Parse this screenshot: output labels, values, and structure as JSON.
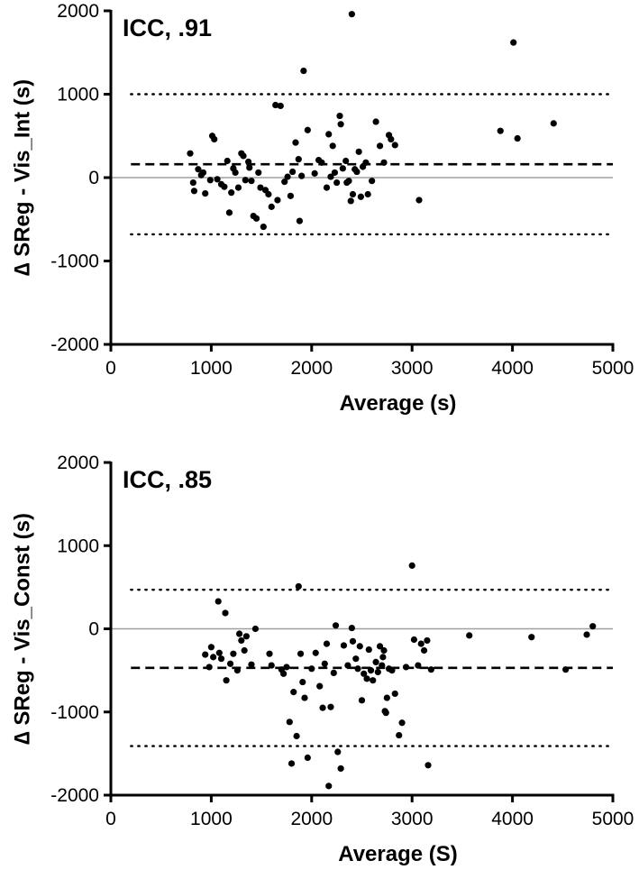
{
  "chart_data": [
    {
      "type": "scatter",
      "annotation": "ICC, .91",
      "xlabel": "Average (s)",
      "ylabel": "∆ SReg - Vis_Int (s)",
      "xlim": [
        0,
        5000
      ],
      "ylim": [
        -2000,
        2000
      ],
      "xticks": [
        "0",
        "1000",
        "2000",
        "3000",
        "4000",
        "5000"
      ],
      "yticks": [
        "-2000",
        "-1000",
        "0",
        "1000",
        "2000"
      ],
      "mean_line": 160,
      "upper_loa": 1000,
      "lower_loa": -680,
      "zero_line": 0,
      "points": [
        [
          790,
          290
        ],
        [
          820,
          -60
        ],
        [
          830,
          -160
        ],
        [
          870,
          100
        ],
        [
          900,
          30
        ],
        [
          920,
          60
        ],
        [
          940,
          -190
        ],
        [
          990,
          -30
        ],
        [
          1010,
          500
        ],
        [
          1030,
          460
        ],
        [
          1060,
          -20
        ],
        [
          1100,
          -80
        ],
        [
          1130,
          -110
        ],
        [
          1160,
          200
        ],
        [
          1180,
          -420
        ],
        [
          1200,
          -180
        ],
        [
          1220,
          110
        ],
        [
          1240,
          60
        ],
        [
          1270,
          -120
        ],
        [
          1300,
          290
        ],
        [
          1320,
          260
        ],
        [
          1340,
          -30
        ],
        [
          1370,
          190
        ],
        [
          1380,
          120
        ],
        [
          1400,
          -40
        ],
        [
          1420,
          -460
        ],
        [
          1450,
          -490
        ],
        [
          1470,
          60
        ],
        [
          1490,
          -120
        ],
        [
          1520,
          -590
        ],
        [
          1540,
          -150
        ],
        [
          1570,
          -200
        ],
        [
          1600,
          -350
        ],
        [
          1640,
          870
        ],
        [
          1660,
          -270
        ],
        [
          1690,
          860
        ],
        [
          1730,
          -50
        ],
        [
          1760,
          10
        ],
        [
          1790,
          -220
        ],
        [
          1810,
          70
        ],
        [
          1840,
          420
        ],
        [
          1870,
          220
        ],
        [
          1880,
          -520
        ],
        [
          1900,
          20
        ],
        [
          1920,
          1280
        ],
        [
          1960,
          570
        ],
        [
          2030,
          50
        ],
        [
          2070,
          210
        ],
        [
          2100,
          180
        ],
        [
          2150,
          -120
        ],
        [
          2170,
          520
        ],
        [
          2190,
          10
        ],
        [
          2210,
          380
        ],
        [
          2230,
          60
        ],
        [
          2250,
          -60
        ],
        [
          2280,
          740
        ],
        [
          2290,
          640
        ],
        [
          2310,
          110
        ],
        [
          2340,
          200
        ],
        [
          2350,
          -60
        ],
        [
          2370,
          -40
        ],
        [
          2390,
          -280
        ],
        [
          2400,
          1960
        ],
        [
          2410,
          -200
        ],
        [
          2430,
          100
        ],
        [
          2450,
          70
        ],
        [
          2470,
          310
        ],
        [
          2490,
          -230
        ],
        [
          2510,
          130
        ],
        [
          2540,
          180
        ],
        [
          2560,
          -200
        ],
        [
          2600,
          -40
        ],
        [
          2640,
          670
        ],
        [
          2680,
          380
        ],
        [
          2720,
          180
        ],
        [
          2770,
          510
        ],
        [
          2790,
          460
        ],
        [
          2830,
          390
        ],
        [
          3070,
          -270
        ],
        [
          3880,
          560
        ],
        [
          4010,
          1620
        ],
        [
          4050,
          470
        ],
        [
          4410,
          650
        ]
      ]
    },
    {
      "type": "scatter",
      "annotation": "ICC, .85",
      "xlabel": "Average (S)",
      "ylabel": "∆ SReg - Vis_Const (s)",
      "xlim": [
        0,
        5000
      ],
      "ylim": [
        -2000,
        2000
      ],
      "xticks": [
        "0",
        "1000",
        "2000",
        "3000",
        "4000",
        "5000"
      ],
      "yticks": [
        "-2000",
        "-1000",
        "0",
        "1000",
        "2000"
      ],
      "mean_line": -470,
      "upper_loa": 470,
      "lower_loa": -1410,
      "zero_line": 0,
      "points": [
        [
          940,
          -310
        ],
        [
          980,
          -460
        ],
        [
          1000,
          -220
        ],
        [
          1020,
          -340
        ],
        [
          1070,
          330
        ],
        [
          1080,
          -290
        ],
        [
          1100,
          -360
        ],
        [
          1140,
          190
        ],
        [
          1150,
          -620
        ],
        [
          1190,
          -420
        ],
        [
          1220,
          -300
        ],
        [
          1260,
          -500
        ],
        [
          1280,
          -60
        ],
        [
          1300,
          -140
        ],
        [
          1330,
          -260
        ],
        [
          1350,
          -90
        ],
        [
          1400,
          -430
        ],
        [
          1440,
          0
        ],
        [
          1580,
          -300
        ],
        [
          1600,
          -440
        ],
        [
          1700,
          -490
        ],
        [
          1720,
          -540
        ],
        [
          1750,
          -460
        ],
        [
          1780,
          -1120
        ],
        [
          1800,
          -1620
        ],
        [
          1820,
          -760
        ],
        [
          1850,
          -1290
        ],
        [
          1870,
          510
        ],
        [
          1890,
          -300
        ],
        [
          1910,
          -640
        ],
        [
          1930,
          -830
        ],
        [
          1960,
          -1550
        ],
        [
          2000,
          -480
        ],
        [
          2040,
          -290
        ],
        [
          2080,
          -690
        ],
        [
          2110,
          -950
        ],
        [
          2130,
          -420
        ],
        [
          2150,
          -180
        ],
        [
          2170,
          -1890
        ],
        [
          2190,
          -940
        ],
        [
          2220,
          -530
        ],
        [
          2240,
          40
        ],
        [
          2260,
          -1480
        ],
        [
          2290,
          -1680
        ],
        [
          2320,
          -200
        ],
        [
          2360,
          -440
        ],
        [
          2400,
          10
        ],
        [
          2410,
          -150
        ],
        [
          2440,
          -360
        ],
        [
          2460,
          -480
        ],
        [
          2480,
          -210
        ],
        [
          2500,
          -860
        ],
        [
          2520,
          -540
        ],
        [
          2550,
          -600
        ],
        [
          2570,
          -250
        ],
        [
          2590,
          -500
        ],
        [
          2610,
          -620
        ],
        [
          2640,
          -400
        ],
        [
          2660,
          -520
        ],
        [
          2680,
          -210
        ],
        [
          2700,
          -440
        ],
        [
          2710,
          -340
        ],
        [
          2720,
          -260
        ],
        [
          2730,
          -990
        ],
        [
          2740,
          -1010
        ],
        [
          2750,
          -830
        ],
        [
          2770,
          -480
        ],
        [
          2800,
          -500
        ],
        [
          2830,
          -780
        ],
        [
          2870,
          -1280
        ],
        [
          2900,
          -1130
        ],
        [
          2940,
          -460
        ],
        [
          3000,
          760
        ],
        [
          3020,
          -130
        ],
        [
          3060,
          -440
        ],
        [
          3090,
          -180
        ],
        [
          3120,
          -260
        ],
        [
          3150,
          -140
        ],
        [
          3160,
          -1640
        ],
        [
          3190,
          -490
        ],
        [
          3570,
          -80
        ],
        [
          4190,
          -100
        ],
        [
          4530,
          -490
        ],
        [
          4740,
          -70
        ],
        [
          4800,
          30
        ]
      ]
    }
  ]
}
